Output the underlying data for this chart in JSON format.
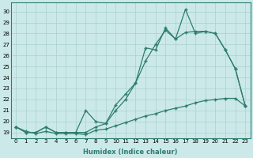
{
  "xlabel": "Humidex (Indice chaleur)",
  "ylabel": "",
  "x": [
    0,
    1,
    2,
    3,
    4,
    5,
    6,
    7,
    8,
    9,
    10,
    11,
    12,
    13,
    14,
    15,
    16,
    17,
    18,
    19,
    20,
    21,
    22,
    23
  ],
  "line1": [
    19.5,
    19.0,
    19.0,
    19.5,
    19.0,
    19.0,
    19.0,
    19.0,
    19.5,
    19.8,
    21.0,
    22.0,
    23.5,
    26.7,
    26.5,
    28.5,
    27.5,
    30.2,
    28.0,
    28.2,
    28.0,
    26.5,
    24.8,
    21.4
  ],
  "line2": [
    19.5,
    19.0,
    19.0,
    19.5,
    19.0,
    19.0,
    19.0,
    21.0,
    20.0,
    19.8,
    21.5,
    22.5,
    23.5,
    25.5,
    27.0,
    28.3,
    27.5,
    28.1,
    28.2,
    28.2,
    28.0,
    26.5,
    24.8,
    21.4
  ],
  "line3": [
    19.5,
    19.1,
    18.9,
    19.1,
    18.9,
    18.9,
    18.9,
    18.8,
    19.2,
    19.3,
    19.6,
    19.9,
    20.2,
    20.5,
    20.7,
    21.0,
    21.2,
    21.4,
    21.7,
    21.9,
    22.0,
    22.1,
    22.1,
    21.4
  ],
  "line_color": "#2e7d6e",
  "bg_color": "#cce9ea",
  "grid_color": "#aacfcf",
  "ylim": [
    18.5,
    30.8
  ],
  "yticks": [
    19,
    20,
    21,
    22,
    23,
    24,
    25,
    26,
    27,
    28,
    29,
    30
  ],
  "xticks": [
    0,
    1,
    2,
    3,
    4,
    5,
    6,
    7,
    8,
    9,
    10,
    11,
    12,
    13,
    14,
    15,
    16,
    17,
    18,
    19,
    20,
    21,
    22,
    23
  ],
  "marker": "+"
}
